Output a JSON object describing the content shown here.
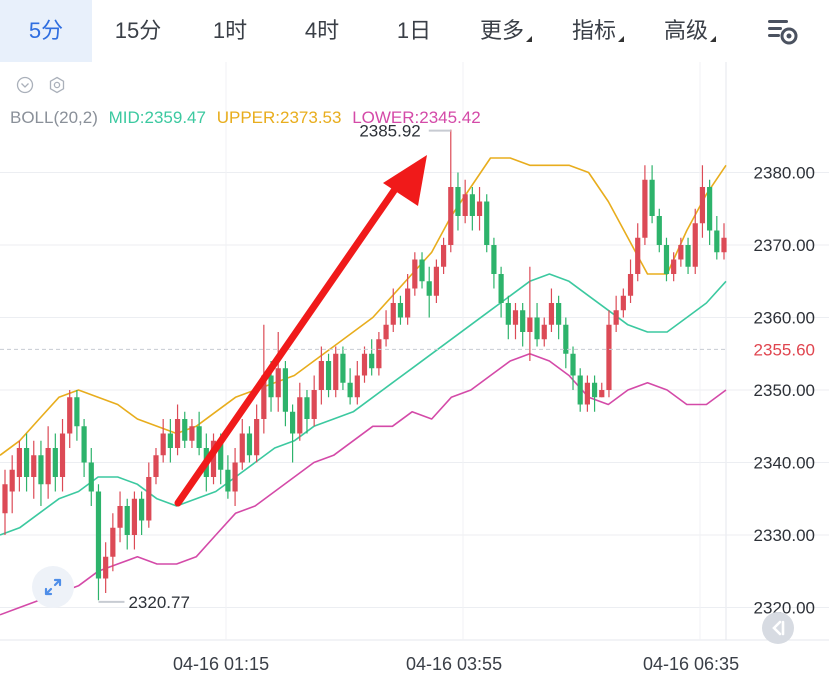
{
  "tabs": [
    {
      "label": "5分",
      "active": true
    },
    {
      "label": "15分",
      "active": false
    },
    {
      "label": "1时",
      "active": false
    },
    {
      "label": "4时",
      "active": false
    },
    {
      "label": "1日",
      "active": false
    },
    {
      "label": "更多",
      "active": false,
      "dropdown": true
    },
    {
      "label": "指标",
      "active": false,
      "dropdown": true
    },
    {
      "label": "高级",
      "active": false,
      "dropdown": true
    }
  ],
  "indicator": {
    "name": "BOLL(20,2)",
    "mid": "MID:2359.47",
    "upper": "UPPER:2373.53",
    "lower": "LOWER:2345.42"
  },
  "colors": {
    "up": "#dc4a56",
    "down": "#2db36b",
    "mid": "#3cc9a0",
    "upper": "#e8ad1d",
    "lower": "#d44aa8",
    "arrow": "#f01a1a",
    "active_tab": "#2f6ee0"
  },
  "chart_data": {
    "type": "candlestick",
    "interval": "5分",
    "y_axis_ticks": [
      "2380.00",
      "2370.00",
      "2360.00",
      "2350.00",
      "2340.00",
      "2330.00",
      "2320.00"
    ],
    "ylim": [
      2317,
      2395
    ],
    "current_price": "2355.60",
    "high_label": "2385.92",
    "low_label": "2320.77",
    "x_tick_labels": [
      "04-16 01:15",
      "04-16 03:55",
      "04-16 06:35"
    ],
    "candles": [
      [
        2333,
        2337,
        2330,
        2339
      ],
      [
        2336,
        2339,
        2333,
        2341
      ],
      [
        2338,
        2342,
        2336,
        2343
      ],
      [
        2342,
        2338,
        2336,
        2344
      ],
      [
        2338,
        2341,
        2335,
        2343
      ],
      [
        2341,
        2337,
        2334,
        2343
      ],
      [
        2337,
        2342,
        2335,
        2345
      ],
      [
        2342,
        2338,
        2336,
        2344
      ],
      [
        2338,
        2344,
        2336,
        2346
      ],
      [
        2344,
        2349,
        2342,
        2350
      ],
      [
        2349,
        2345,
        2343,
        2350
      ],
      [
        2345,
        2340,
        2338,
        2346
      ],
      [
        2340,
        2336,
        2334,
        2342
      ],
      [
        2336,
        2324,
        2321,
        2337
      ],
      [
        2324,
        2327,
        2322,
        2329
      ],
      [
        2327,
        2331,
        2325,
        2333
      ],
      [
        2331,
        2334,
        2329,
        2336
      ],
      [
        2334,
        2330,
        2328,
        2335
      ],
      [
        2330,
        2335,
        2328,
        2336
      ],
      [
        2335,
        2332,
        2330,
        2336
      ],
      [
        2332,
        2338,
        2331,
        2340
      ],
      [
        2338,
        2341,
        2337,
        2342
      ],
      [
        2341,
        2344,
        2340,
        2346
      ],
      [
        2344,
        2342,
        2340,
        2346
      ],
      [
        2342,
        2346,
        2341,
        2348
      ],
      [
        2346,
        2343,
        2342,
        2347
      ],
      [
        2343,
        2345,
        2342,
        2346
      ],
      [
        2345,
        2342,
        2341,
        2347
      ],
      [
        2342,
        2338,
        2336,
        2344
      ],
      [
        2338,
        2343,
        2337,
        2344
      ],
      [
        2343,
        2339,
        2337,
        2344
      ],
      [
        2339,
        2336,
        2335,
        2341
      ],
      [
        2336,
        2340,
        2334,
        2342
      ],
      [
        2340,
        2344,
        2339,
        2346
      ],
      [
        2344,
        2341,
        2340,
        2345
      ],
      [
        2341,
        2346,
        2340,
        2348
      ],
      [
        2346,
        2352,
        2344,
        2359
      ],
      [
        2352,
        2349,
        2347,
        2354
      ],
      [
        2349,
        2353,
        2347,
        2358
      ],
      [
        2353,
        2347,
        2345,
        2354
      ],
      [
        2347,
        2344,
        2340,
        2348
      ],
      [
        2344,
        2349,
        2343,
        2351
      ],
      [
        2349,
        2346,
        2344,
        2350
      ],
      [
        2346,
        2350,
        2345,
        2352
      ],
      [
        2350,
        2354,
        2348,
        2356
      ],
      [
        2354,
        2350,
        2349,
        2355
      ],
      [
        2350,
        2355,
        2349,
        2356
      ],
      [
        2355,
        2351,
        2350,
        2356
      ],
      [
        2351,
        2349,
        2348,
        2353
      ],
      [
        2349,
        2352,
        2348,
        2354
      ],
      [
        2352,
        2355,
        2351,
        2356
      ],
      [
        2355,
        2353,
        2352,
        2357
      ],
      [
        2353,
        2357,
        2352,
        2358
      ],
      [
        2357,
        2359,
        2356,
        2361
      ],
      [
        2359,
        2362,
        2358,
        2364
      ],
      [
        2362,
        2360,
        2359,
        2363
      ],
      [
        2360,
        2364,
        2359,
        2366
      ],
      [
        2364,
        2368,
        2363,
        2369
      ],
      [
        2368,
        2365,
        2364,
        2369
      ],
      [
        2365,
        2363,
        2360,
        2367
      ],
      [
        2363,
        2367,
        2362,
        2368
      ],
      [
        2367,
        2370,
        2366,
        2371
      ],
      [
        2370,
        2378,
        2369,
        2385.92
      ],
      [
        2378,
        2374,
        2372,
        2380
      ],
      [
        2374,
        2377,
        2373,
        2379
      ],
      [
        2377,
        2374,
        2372,
        2378
      ],
      [
        2374,
        2376,
        2372,
        2378
      ],
      [
        2376,
        2370,
        2369,
        2377
      ],
      [
        2370,
        2366,
        2364,
        2371
      ],
      [
        2366,
        2362,
        2360,
        2367
      ],
      [
        2362,
        2359,
        2357,
        2363
      ],
      [
        2359,
        2361,
        2357,
        2362
      ],
      [
        2361,
        2358,
        2356,
        2362
      ],
      [
        2358,
        2360,
        2354,
        2367
      ],
      [
        2360,
        2357,
        2356,
        2362
      ],
      [
        2357,
        2359,
        2356,
        2360
      ],
      [
        2359,
        2362,
        2358,
        2364
      ],
      [
        2362,
        2359,
        2357,
        2363
      ],
      [
        2359,
        2355,
        2353,
        2360
      ],
      [
        2355,
        2352,
        2350,
        2356
      ],
      [
        2352,
        2348,
        2347,
        2353
      ],
      [
        2348,
        2351,
        2347,
        2352
      ],
      [
        2351,
        2349,
        2347,
        2352
      ],
      [
        2349,
        2350,
        2349,
        2351
      ],
      [
        2350,
        2359,
        2349,
        2361
      ],
      [
        2359,
        2361,
        2358,
        2363
      ],
      [
        2361,
        2363,
        2360,
        2364
      ],
      [
        2363,
        2366,
        2362,
        2368
      ],
      [
        2366,
        2371,
        2365,
        2373
      ],
      [
        2371,
        2379,
        2370,
        2381
      ],
      [
        2379,
        2374,
        2373,
        2381
      ],
      [
        2374,
        2370,
        2369,
        2375
      ],
      [
        2370,
        2366,
        2365,
        2371
      ],
      [
        2366,
        2368,
        2365,
        2369
      ],
      [
        2368,
        2370,
        2367,
        2371
      ],
      [
        2370,
        2367,
        2366,
        2371
      ],
      [
        2367,
        2373,
        2366,
        2375
      ],
      [
        2373,
        2378,
        2371,
        2381
      ],
      [
        2378,
        2372,
        2370,
        2379
      ],
      [
        2372,
        2369,
        2368,
        2374
      ],
      [
        2369,
        2371,
        2368,
        2373
      ]
    ],
    "series": [
      {
        "name": "MID",
        "values": [
          2330,
          2331,
          2333,
          2335,
          2336,
          2338,
          2338,
          2337,
          2335,
          2334,
          2335,
          2336,
          2338,
          2340,
          2342,
          2343,
          2345,
          2346,
          2347,
          2349,
          2351,
          2353,
          2355,
          2357,
          2359,
          2361,
          2363,
          2365,
          2366,
          2365,
          2363,
          2361,
          2359,
          2358,
          2358,
          2360,
          2362,
          2365
        ]
      },
      {
        "name": "UPPER",
        "values": [
          2341,
          2343,
          2346,
          2349,
          2350,
          2349,
          2348,
          2346,
          2345,
          2344,
          2345,
          2347,
          2349,
          2350,
          2351,
          2352,
          2354,
          2356,
          2358,
          2360,
          2363,
          2366,
          2369,
          2374,
          2378,
          2382,
          2382,
          2381,
          2381,
          2381,
          2380,
          2376,
          2371,
          2366,
          2366,
          2372,
          2377,
          2381
        ]
      },
      {
        "name": "LOWER",
        "values": [
          2319,
          2320,
          2321,
          2322,
          2323,
          2325,
          2326,
          2327,
          2326,
          2326,
          2327,
          2330,
          2333,
          2334,
          2336,
          2338,
          2340,
          2341,
          2343,
          2345,
          2345,
          2347,
          2346,
          2349,
          2350,
          2352,
          2354,
          2355,
          2354,
          2352,
          2349,
          2348,
          2350,
          2351,
          2350,
          2348,
          2348,
          2350
        ]
      }
    ]
  }
}
